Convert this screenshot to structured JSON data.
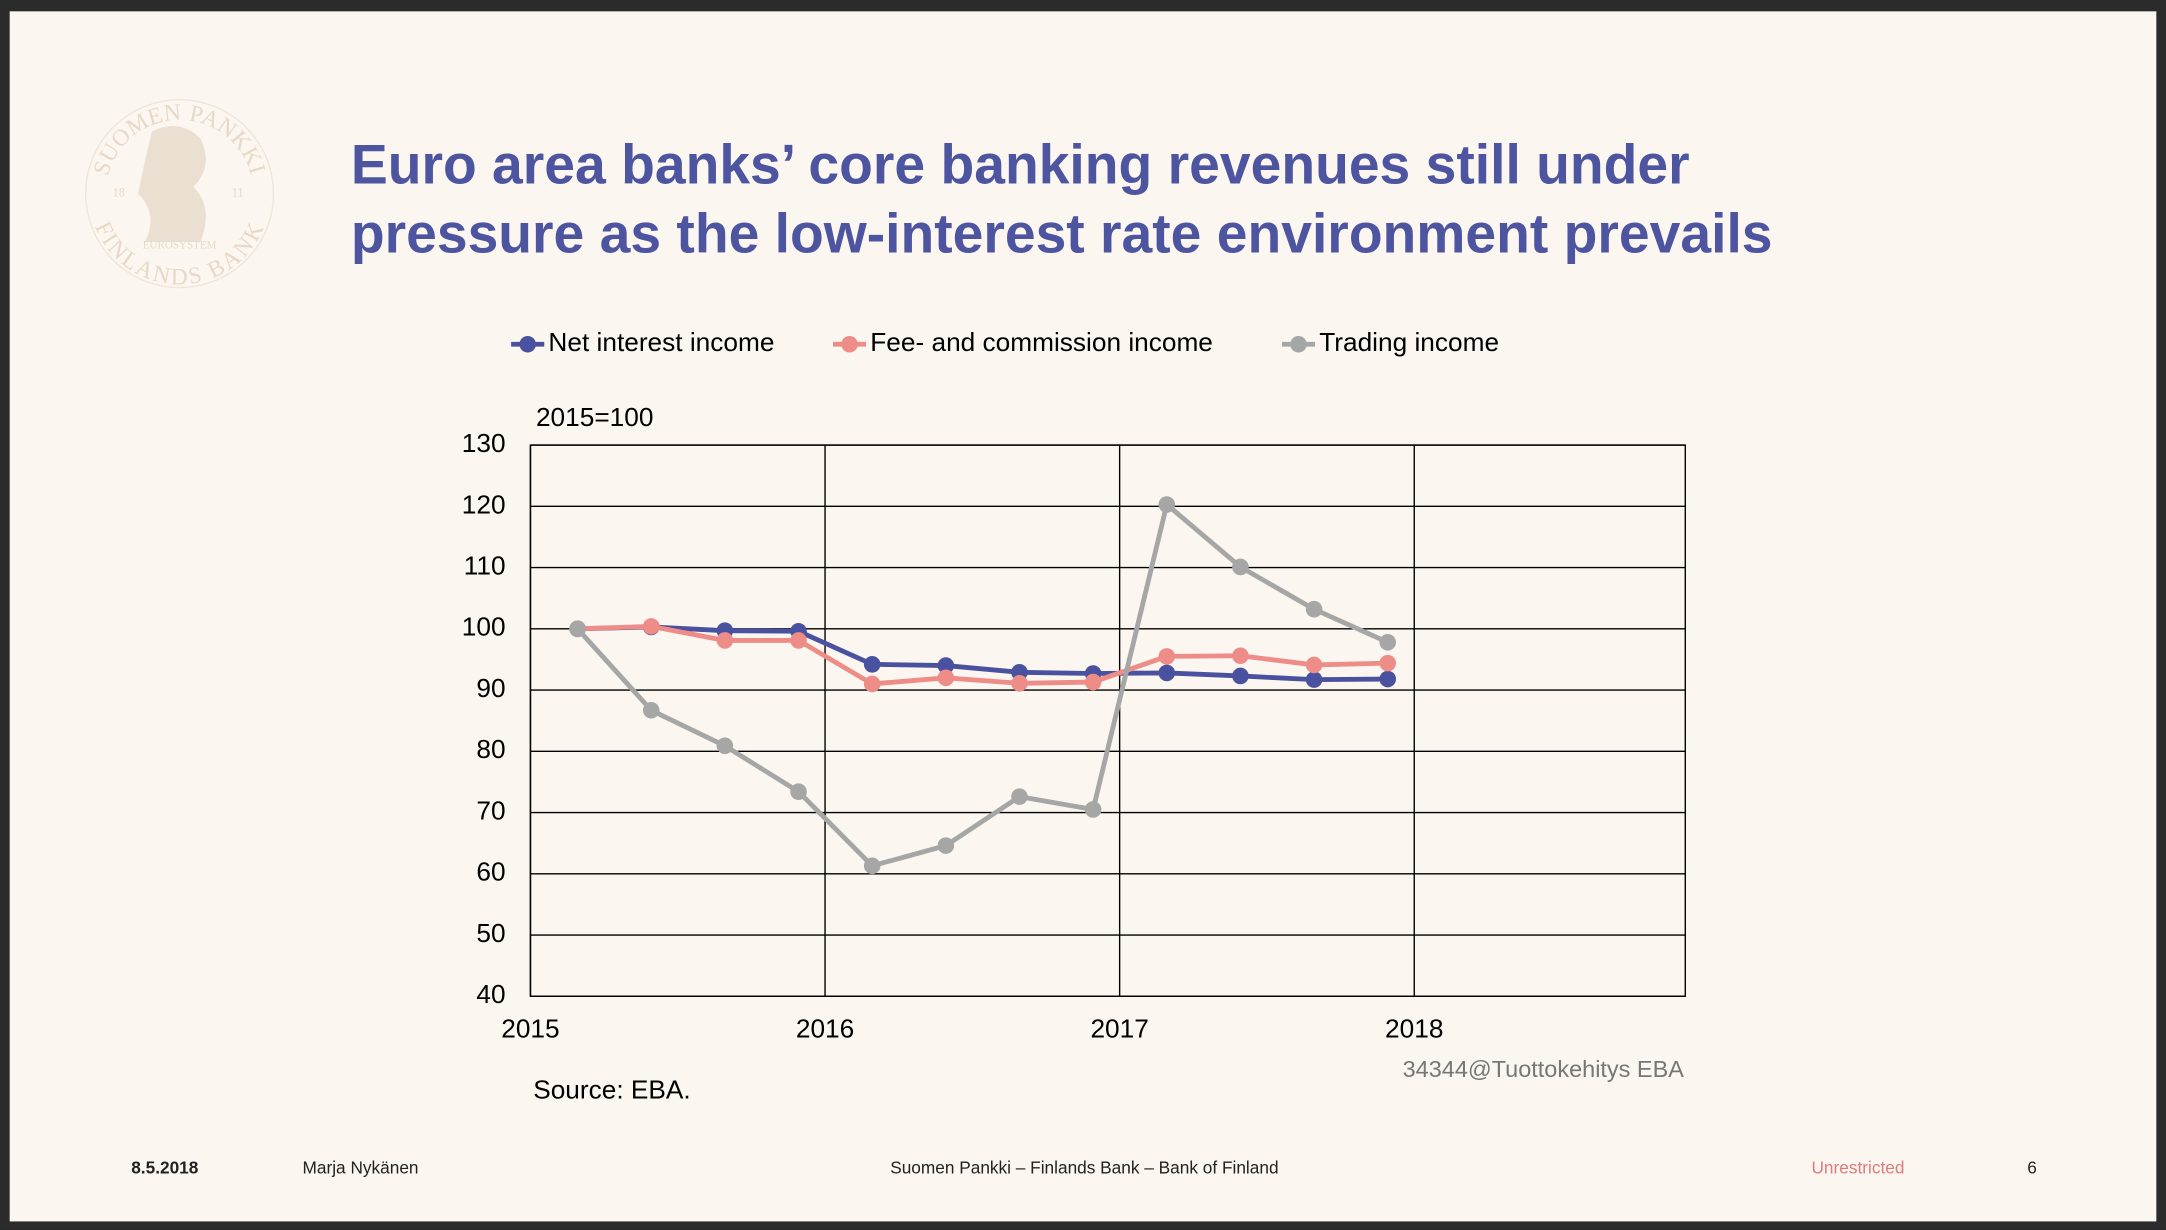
{
  "header": {
    "title_lines": [
      "Euro area banks’ core banking revenues still under",
      "pressure as the low-interest rate environment prevails"
    ]
  },
  "logo": {
    "top": "SUOMEN PANKKI",
    "bottom": "FINLANDS BANK",
    "middle": "EUROSYSTEM",
    "left": "18",
    "right": "11"
  },
  "chart_data": {
    "type": "line",
    "y_label": "2015=100",
    "x": [
      2015.16,
      2015.41,
      2015.66,
      2015.91,
      2016.16,
      2016.41,
      2016.66,
      2016.91,
      2017.16,
      2017.41,
      2017.66,
      2017.91
    ],
    "series": [
      {
        "name": "Net interest income",
        "color": "#4a52a0",
        "values": [
          100,
          100.3,
          99.7,
          99.6,
          94.2,
          94,
          92.9,
          92.7,
          92.8,
          92.3,
          91.7,
          91.8
        ]
      },
      {
        "name": "Fee- and commission income",
        "color": "#ee8c88",
        "values": [
          100,
          100.4,
          98.1,
          98.1,
          91,
          92,
          91.1,
          91.3,
          95.5,
          95.6,
          94.1,
          94.4
        ]
      },
      {
        "name": "Trading income",
        "color": "#a6a6a6",
        "values": [
          100,
          86.7,
          80.9,
          73.4,
          61.3,
          64.6,
          72.6,
          70.5,
          120.3,
          110.1,
          103.2,
          97.8
        ]
      }
    ],
    "xlim": [
      2015,
      2018.92
    ],
    "xticks": [
      2015,
      2016,
      2017,
      2018
    ],
    "ylim": [
      40,
      130
    ],
    "yticks": [
      40,
      50,
      60,
      70,
      80,
      90,
      100,
      110,
      120,
      130
    ],
    "grid": true,
    "legend": "top",
    "source": "Source: EBA.",
    "code": "34344@Tuottokehitys EBA"
  },
  "footer": {
    "date": "8.5.2018",
    "author": "Marja Nykänen",
    "org": "Suomen Pankki – Finlands Bank – Bank of Finland",
    "classification": "Unrestricted",
    "page": "6"
  }
}
